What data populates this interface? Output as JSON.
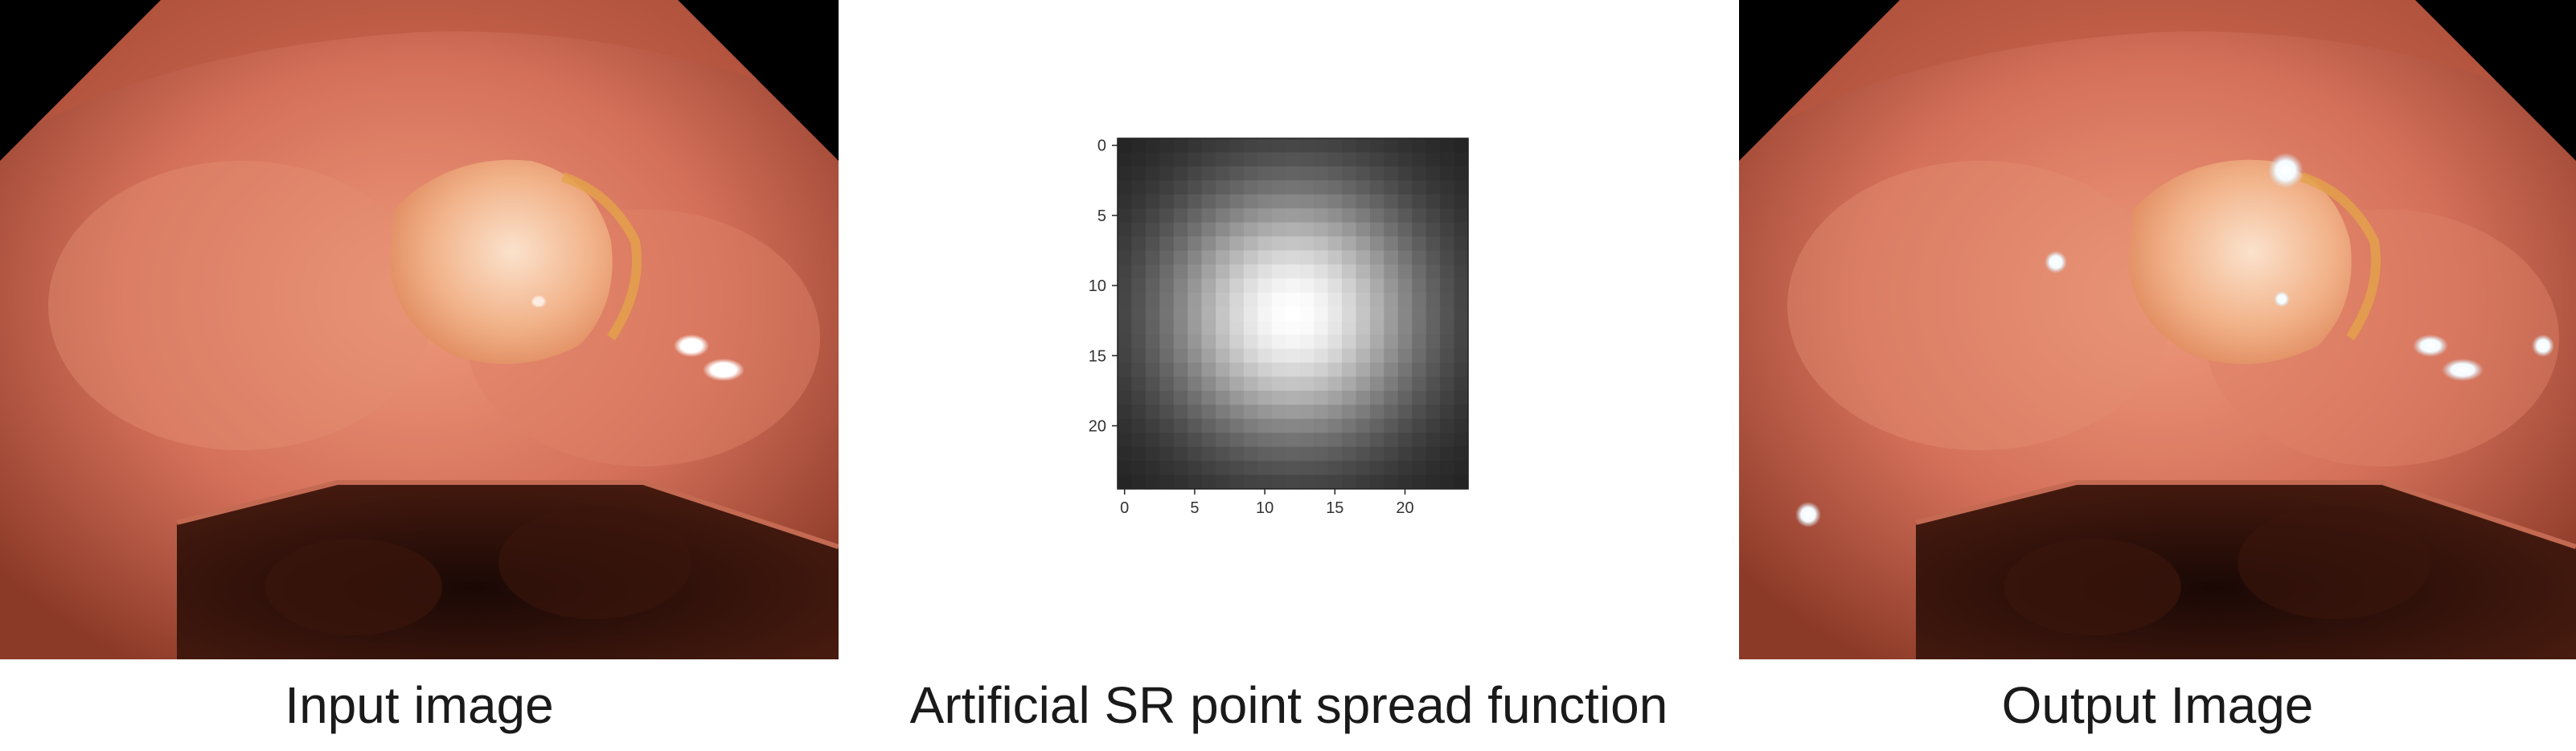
{
  "captions": {
    "input": "Input image",
    "psf": "Artificial SR point spread function",
    "output": "Output Image"
  },
  "psf_plot": {
    "type": "heatmap",
    "grid_size": 25,
    "center": [
      12,
      12
    ],
    "x_ticks": [
      "0",
      "5",
      "10",
      "15",
      "20"
    ],
    "y_ticks": [
      "0",
      "5",
      "10",
      "15",
      "20"
    ],
    "colormap": "gray"
  },
  "colors": {
    "tissue": "#d97a62",
    "tissue_dark": "#9a4530",
    "lumen": "#2a0f08",
    "polyp": "#f2b38a",
    "highlight": "#ffffff",
    "border": "#000000"
  }
}
